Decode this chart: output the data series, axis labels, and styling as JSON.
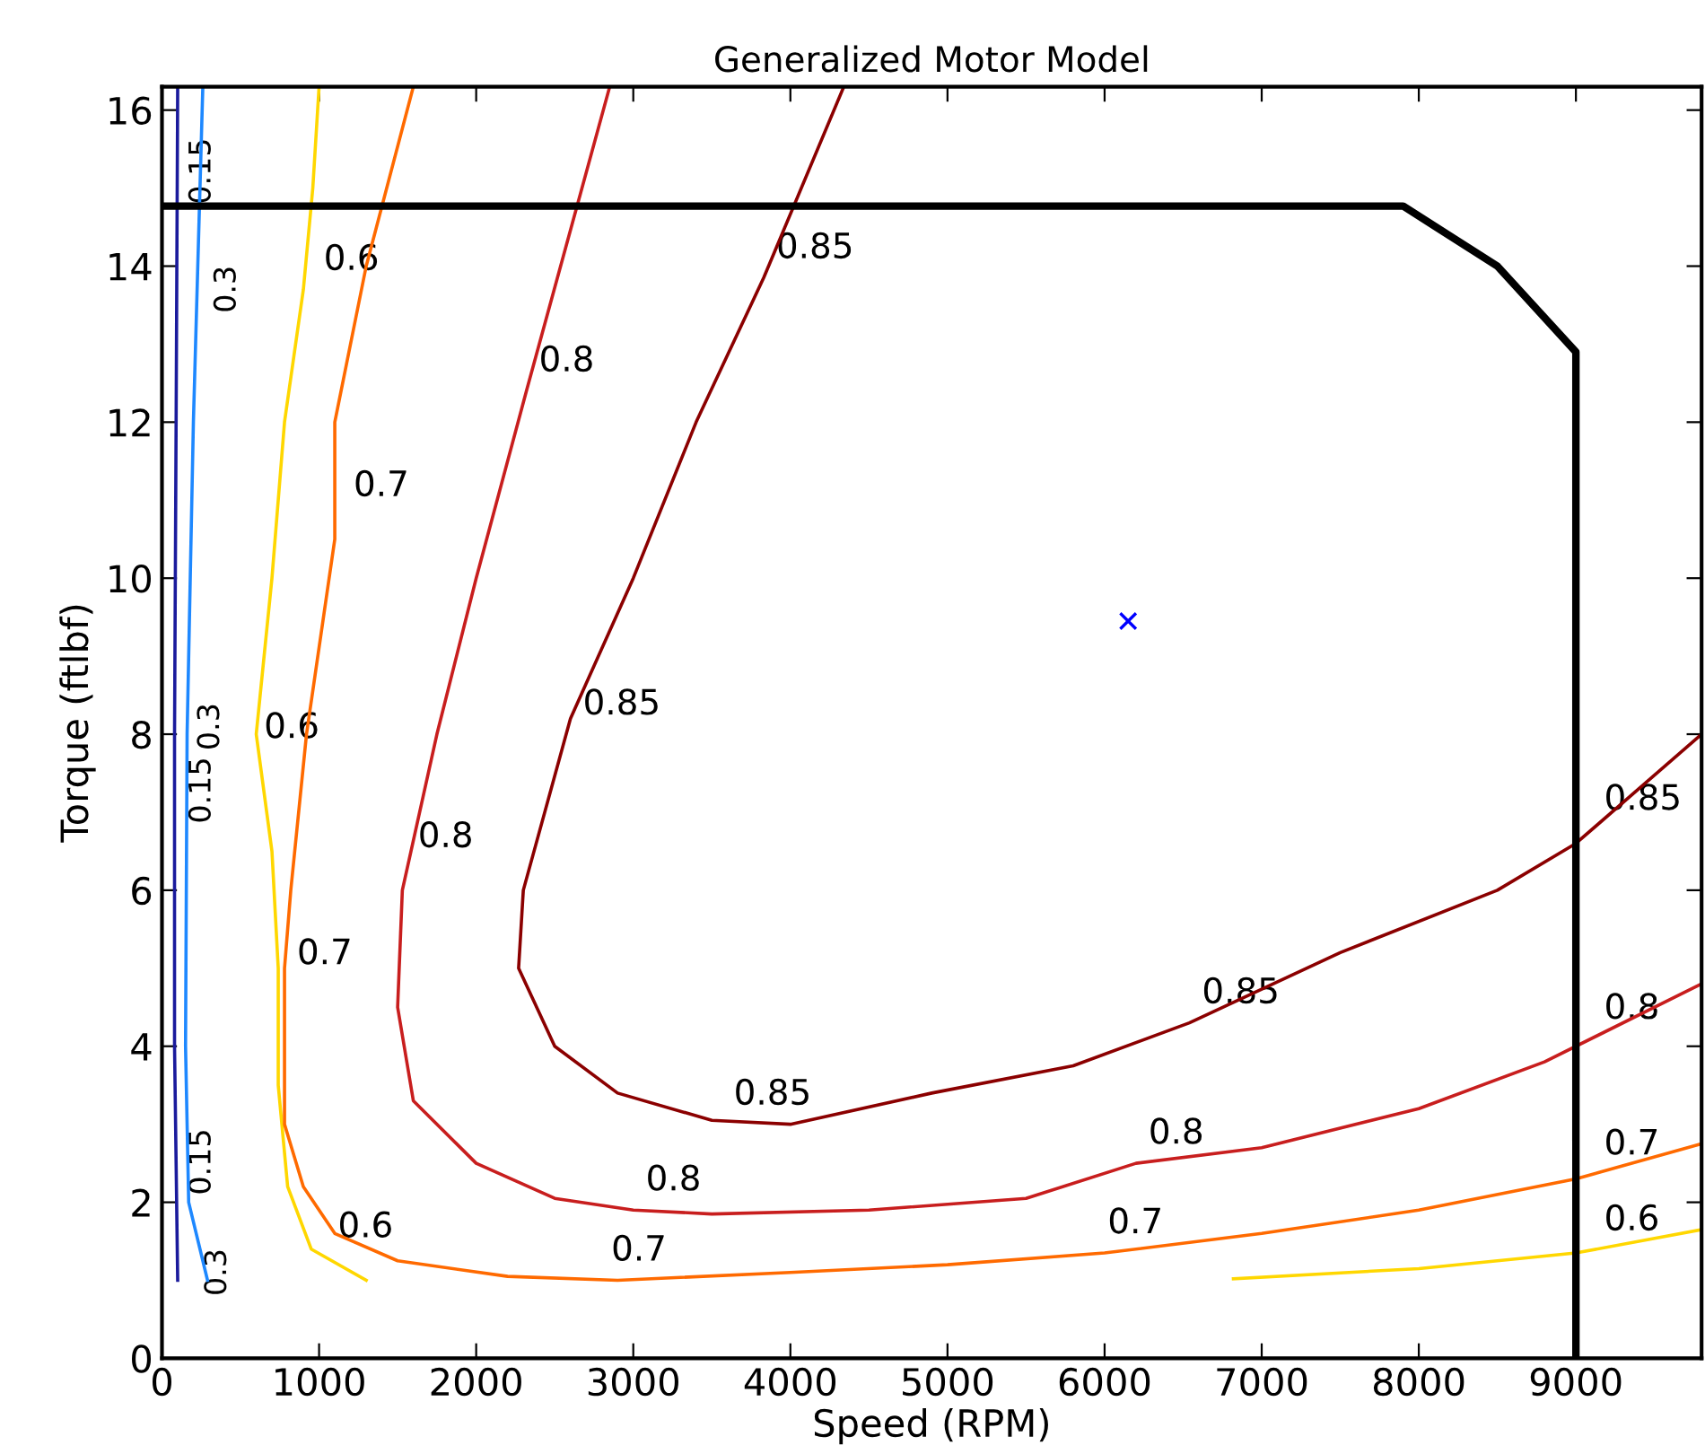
{
  "chart_data": {
    "type": "line",
    "title": "Generalized Motor Model",
    "xlabel": "Speed (RPM)",
    "ylabel": "Torque (ftlbf)",
    "xlim": [
      0,
      9800
    ],
    "ylim": [
      0,
      16.3
    ],
    "xticks": [
      0,
      1000,
      2000,
      3000,
      4000,
      5000,
      6000,
      7000,
      8000,
      9000
    ],
    "yticks": [
      0,
      2,
      4,
      6,
      8,
      10,
      12,
      14,
      16
    ],
    "grid": false,
    "legend": false,
    "series": [
      {
        "color": "#1a1a9c",
        "x": [
          100,
          80,
          80,
          90,
          100
        ],
        "values": [
          1,
          4,
          8,
          12,
          16.3
        ]
      },
      {
        "color": "#1e88ff",
        "x": [
          290,
          170,
          150,
          160,
          200,
          260
        ],
        "values": [
          1,
          2,
          4,
          8,
          12,
          16.3
        ]
      },
      {
        "color": "#ffd700",
        "x": [
          1300,
          950,
          800,
          740,
          740,
          700,
          600,
          700,
          780,
          900,
          960,
          1000
        ],
        "values": [
          1.0,
          1.4,
          2.2,
          3.5,
          5,
          6.5,
          8,
          10,
          12,
          13.7,
          15,
          16.3
        ]
      },
      {
        "color": "#ffd700",
        "x": [
          6820,
          8000,
          9000,
          9800
        ],
        "values": [
          1.02,
          1.15,
          1.35,
          1.65
        ]
      },
      {
        "color": "#ff6a00",
        "x": [
          1600,
          1300,
          1100,
          1100,
          920,
          820,
          780,
          780,
          900,
          1100,
          1500,
          2200,
          2900,
          4000,
          5000,
          6000,
          7000,
          8000,
          9000,
          9800
        ],
        "values": [
          16.3,
          14,
          12,
          10.5,
          8,
          6,
          5,
          3,
          2.2,
          1.6,
          1.25,
          1.05,
          1.0,
          1.1,
          1.2,
          1.35,
          1.6,
          1.9,
          2.3,
          2.75
        ]
      },
      {
        "color": "#c81e1e",
        "x": [
          2850,
          2320,
          2000,
          1750,
          1530,
          1500,
          1600,
          2000,
          2500,
          3000,
          3500,
          4500,
          5500,
          6200,
          7000,
          8000,
          8800,
          9800
        ],
        "values": [
          16.3,
          12.4,
          10,
          8,
          6,
          4.5,
          3.3,
          2.5,
          2.05,
          1.9,
          1.85,
          1.9,
          2.05,
          2.5,
          2.7,
          3.2,
          3.8,
          4.8
        ]
      },
      {
        "color": "#8b0000",
        "x": [
          4340,
          3830,
          3400,
          3000,
          2600,
          2300,
          2270,
          2500,
          2900,
          3500,
          4000,
          4900,
          5800,
          6540,
          7500,
          8500,
          9000,
          9400,
          9800
        ],
        "values": [
          16.3,
          13.85,
          12,
          10,
          8.2,
          6,
          5,
          4,
          3.4,
          3.05,
          3.0,
          3.4,
          3.75,
          4.3,
          5.2,
          6.0,
          6.6,
          7.3,
          8.0
        ]
      },
      {
        "color": "#000000",
        "x": [
          0,
          7900,
          8500,
          9000,
          9000
        ],
        "values": [
          14.77,
          14.77,
          14.0,
          12.9,
          0
        ]
      },
      {
        "type": "scatter",
        "marker": "cross",
        "color": "#0000ff",
        "x": [
          6150
        ],
        "values": [
          9.45
        ]
      }
    ],
    "annotations": [
      {
        "text": "0.15",
        "x": 100,
        "y": 14.6
      },
      {
        "text": "0.15",
        "x": 100,
        "y": 7.9
      },
      {
        "text": "0.15",
        "x": 100,
        "y": 1.9
      },
      {
        "text": "0.3",
        "x": 260,
        "y": 14.2
      },
      {
        "text": "0.3",
        "x": 155,
        "y": 7.6
      },
      {
        "text": "0.3",
        "x": 200,
        "y": 1.6
      },
      {
        "text": "0.6",
        "x": 950,
        "y": 13.7
      },
      {
        "text": "0.6",
        "x": 570,
        "y": 7.7
      },
      {
        "text": "0.6",
        "x": 1040,
        "y": 1.3
      },
      {
        "text": "0.6",
        "x": 9100,
        "y": 1.39
      },
      {
        "text": "0.7",
        "x": 1140,
        "y": 10.8
      },
      {
        "text": "0.7",
        "x": 780,
        "y": 4.8
      },
      {
        "text": "0.7",
        "x": 2780,
        "y": 1.0
      },
      {
        "text": "0.7",
        "x": 5940,
        "y": 1.35
      },
      {
        "text": "0.7",
        "x": 9100,
        "y": 2.36
      },
      {
        "text": "0.8",
        "x": 2320,
        "y": 12.4
      },
      {
        "text": "0.8",
        "x": 1550,
        "y": 6.3
      },
      {
        "text": "0.8",
        "x": 3000,
        "y": 1.9
      },
      {
        "text": "0.8",
        "x": 6200,
        "y": 2.5
      },
      {
        "text": "0.8",
        "x": 9100,
        "y": 4.1
      },
      {
        "text": "0.85",
        "x": 3830,
        "y": 13.85
      },
      {
        "text": "0.85",
        "x": 2600,
        "y": 8.0
      },
      {
        "text": "0.85",
        "x": 3560,
        "y": 3.0
      },
      {
        "text": "0.85",
        "x": 6540,
        "y": 4.3
      },
      {
        "text": "0.85",
        "x": 9100,
        "y": 6.78
      }
    ]
  }
}
